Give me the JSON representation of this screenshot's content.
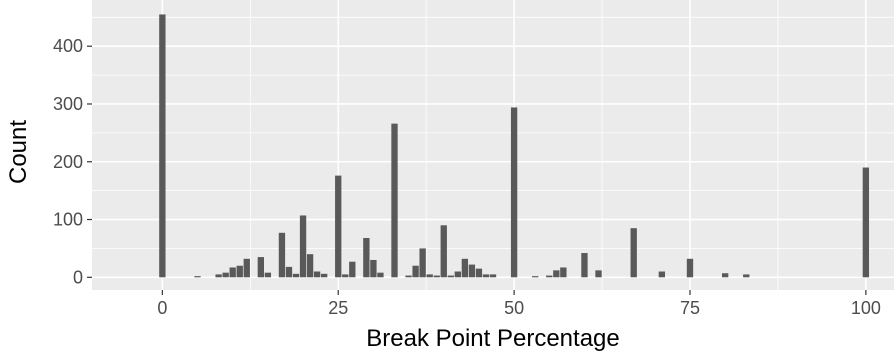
{
  "chart_data": {
    "type": "bar",
    "xlabel": "Break Point Percentage",
    "ylabel": "Count",
    "xlim": [
      -10,
      104
    ],
    "ylim": [
      -22,
      480
    ],
    "x_ticks": [
      0,
      25,
      50,
      75,
      100
    ],
    "y_ticks": [
      0,
      100,
      200,
      300,
      400
    ],
    "bar_width": 0.9,
    "grid": true,
    "colors": {
      "panel": "#ebebeb",
      "bar": "#595959",
      "grid": "#ffffff"
    },
    "x": [
      0,
      5,
      8,
      9,
      10,
      11,
      12,
      14,
      15,
      17,
      18,
      19,
      20,
      21,
      22,
      23,
      25,
      26,
      27,
      29,
      30,
      31,
      33,
      35,
      36,
      37,
      38,
      39,
      40,
      41,
      42,
      43,
      44,
      45,
      46,
      47,
      50,
      53,
      55,
      56,
      57,
      60,
      62,
      67,
      71,
      75,
      80,
      83,
      100
    ],
    "values": [
      455,
      2,
      5,
      8,
      17,
      20,
      32,
      35,
      8,
      77,
      18,
      6,
      107,
      40,
      10,
      6,
      176,
      5,
      27,
      68,
      30,
      8,
      266,
      3,
      20,
      50,
      5,
      3,
      90,
      3,
      10,
      32,
      22,
      15,
      5,
      5,
      294,
      2,
      3,
      12,
      17,
      42,
      12,
      85,
      10,
      32,
      7,
      5,
      190
    ]
  }
}
